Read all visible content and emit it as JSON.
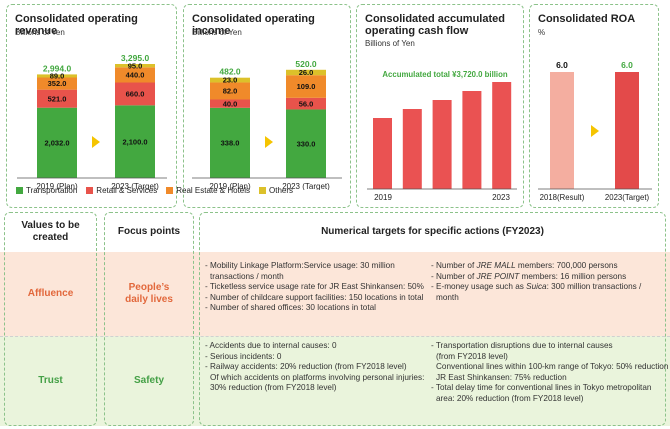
{
  "chart_data": [
    {
      "type": "bar",
      "title": "Consolidated operating revenue",
      "subtitle": "Billions of Yen",
      "categories": [
        "2019 (Plan)",
        "2023 (Target)"
      ],
      "series": [
        {
          "name": "Transportation",
          "values": [
            2032.0,
            2100.0
          ],
          "labels": [
            "2,032.0",
            "2,100.0"
          ]
        },
        {
          "name": "Retail & Services",
          "values": [
            521.0,
            660.0
          ],
          "labels": [
            "521.0",
            "660.0"
          ]
        },
        {
          "name": "Real Estate & Hotels",
          "values": [
            352.0,
            440.0
          ],
          "labels": [
            "352.0",
            "440.0"
          ]
        },
        {
          "name": "Others",
          "values": [
            89.0,
            95.0
          ],
          "labels": [
            "89.0",
            "95.0"
          ]
        }
      ],
      "totals": [
        "2,994.0",
        "3,295.0"
      ],
      "total_values": [
        2994.0,
        3295.0
      ]
    },
    {
      "type": "bar",
      "title": "Consolidated operating income",
      "subtitle": "Billions of Yen",
      "categories": [
        "2019 (Plan)",
        "2023 (Target)"
      ],
      "series": [
        {
          "name": "Transportation",
          "values": [
            338.0,
            330.0
          ],
          "labels": [
            "338.0",
            "330.0"
          ]
        },
        {
          "name": "Retail & Services",
          "values": [
            40.0,
            56.0
          ],
          "labels": [
            "40.0",
            "56.0"
          ]
        },
        {
          "name": "Real Estate & Hotels",
          "values": [
            82.0,
            109.0
          ],
          "labels": [
            "82.0",
            "109.0"
          ]
        },
        {
          "name": "Others",
          "values": [
            23.0,
            26.0
          ],
          "labels": [
            "23.0",
            "26.0"
          ]
        }
      ],
      "totals": [
        "482.0",
        "520.0"
      ],
      "total_values": [
        482.0,
        520.0
      ]
    },
    {
      "type": "bar",
      "title": "Consolidated accumulated operating cash flow",
      "title_lines": [
        "Consolidated accumulated",
        "operating cash flow"
      ],
      "subtitle": "Billions of Yen",
      "annotation": "Accumulated total ¥3,720.0 billion",
      "categories": [
        "2019",
        "",
        "",
        "",
        "2023"
      ],
      "values": [
        1,
        1,
        1,
        1,
        1
      ]
    },
    {
      "type": "bar",
      "title": "Consolidated ROA",
      "subtitle": "%",
      "categories": [
        "2018(Result)",
        "2023(Target)"
      ],
      "values": [
        6.0,
        6.0
      ],
      "labels": [
        "6.0",
        "6.0"
      ]
    }
  ],
  "colors": {
    "transportation": "#43a840",
    "retail": "#e8534b",
    "real_estate": "#f08a2a",
    "others": "#dcc12a",
    "arrow": "#f5c400",
    "cf_bar": "#ea5252",
    "roa_result": "#f4aea0",
    "roa_target": "#e34a4a",
    "total_label": "#43a840",
    "annotation": "#43a840"
  },
  "legend": [
    "Transportation",
    "Retail & Services",
    "Real Estate & Hotels",
    "Others"
  ],
  "table": {
    "headers": {
      "values": "Values to be created",
      "focus": "Focus points",
      "targets": "Numerical targets for specific actions (FY2023)"
    },
    "rows": [
      {
        "value": "Affluence",
        "focus": "People’s daily lives",
        "left": [
          "- Mobility Linkage Platform:Service usage: 30 million",
          "  transactions / month",
          "- Ticketless service usage rate for JR East Shinkansen: 50%",
          "- Number of childcare support facilities: 150 locations in total",
          "- Number of shared offices: 30 locations in total"
        ],
        "right": [
          "- Number of JRE MALL members: 700,000 persons",
          "- Number of JRE POINT members: 16 million persons",
          "- E-money usage such as Suica: 300 million transactions /",
          "  month"
        ]
      },
      {
        "value": "Trust",
        "focus": "Safety",
        "left": [
          "- Accidents due to internal causes: 0",
          "- Serious incidents: 0",
          "- Railway accidents: 20% reduction (from FY2018 level)",
          "  Of which accidents on platforms involving personal injuries:",
          "  30% reduction (from FY2018 level)"
        ],
        "right": [
          "- Transportation disruptions due to internal causes",
          "  (from FY2018 level)",
          "  Conventional lines within 100-km range of Tokyo: 50% reduction",
          "  JR East Shinkansen: 75% reduction",
          "- Total delay time for conventional lines in Tokyo metropolitan",
          "  area: 20% reduction (from FY2018 level)"
        ]
      }
    ]
  }
}
